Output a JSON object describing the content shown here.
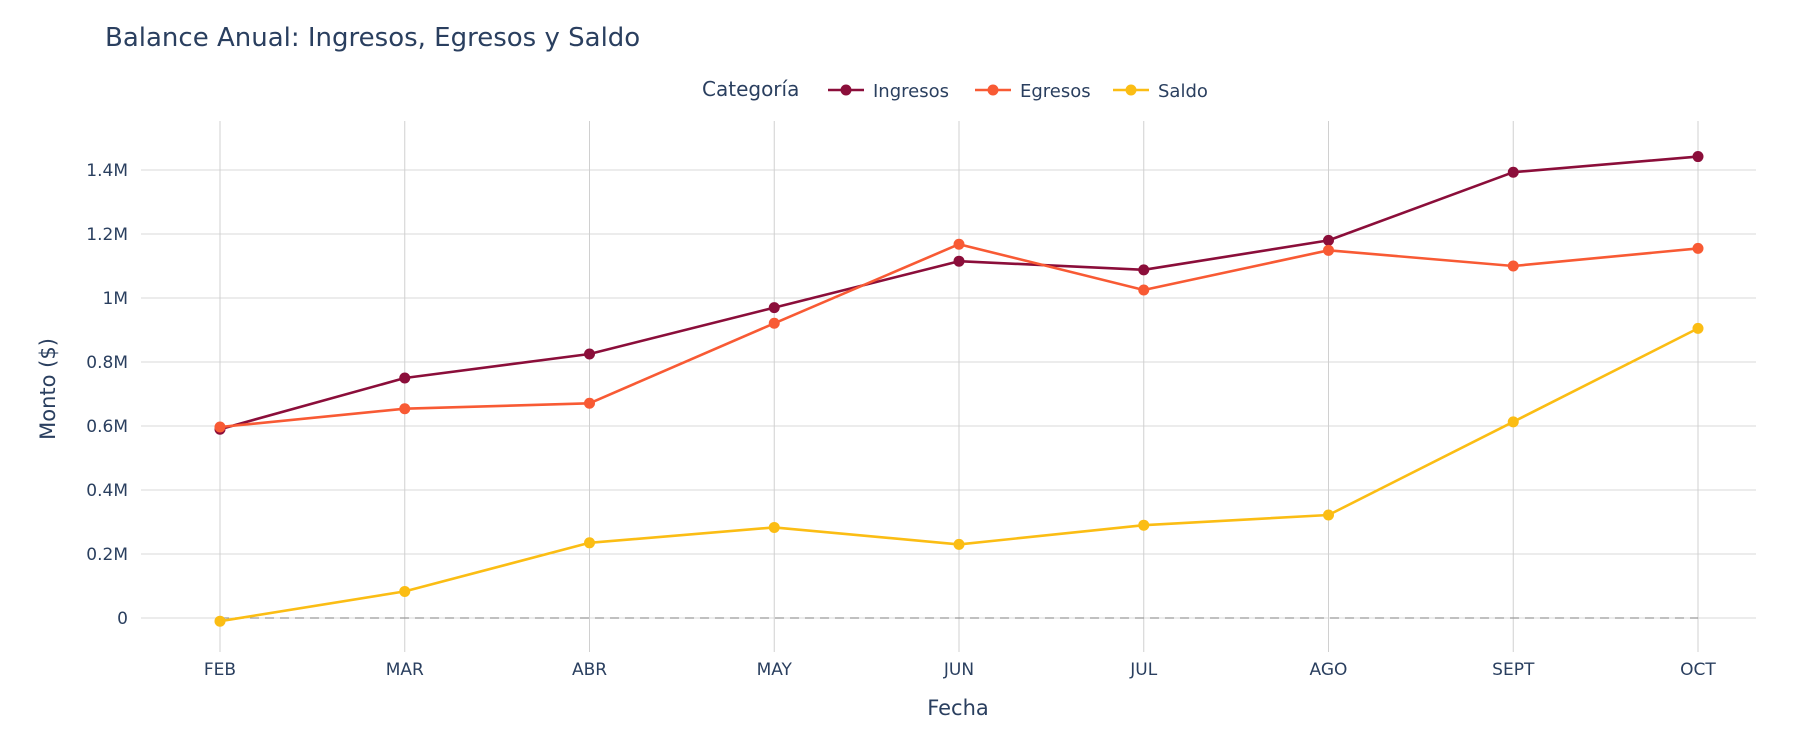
{
  "chart_data": {
    "type": "line",
    "title": "Balance Anual: Ingresos, Egresos y Saldo",
    "xlabel": "Fecha",
    "ylabel": "Monto ($)",
    "categories": [
      "FEB",
      "MAR",
      "ABR",
      "MAY",
      "JUN",
      "JUL",
      "AGO",
      "SEPT",
      "OCT"
    ],
    "ylim": [
      -0.11,
      1.56
    ],
    "yticks": [
      0,
      0.2,
      0.4,
      0.6,
      0.8,
      1.0,
      1.2,
      1.4
    ],
    "ytick_labels": [
      "0",
      "0.2M",
      "0.4M",
      "0.6M",
      "0.8M",
      "1M",
      "1.2M",
      "1.4M"
    ],
    "y_unit": "millions",
    "grid": true,
    "zero_line": "dashed",
    "legend": {
      "title": "Categoría",
      "placement": "top-center",
      "orientation": "horizontal"
    },
    "series": [
      {
        "name": "Ingresos",
        "color": "#8b0e3a",
        "values": [
          0.59,
          0.75,
          0.825,
          0.97,
          1.115,
          1.088,
          1.18,
          1.393,
          1.442
        ]
      },
      {
        "name": "Egresos",
        "color": "#f85a34",
        "values": [
          0.597,
          0.654,
          0.671,
          0.921,
          1.168,
          1.025,
          1.149,
          1.1,
          1.155
        ]
      },
      {
        "name": "Saldo",
        "color": "#fbbd14",
        "values": [
          -0.01,
          0.083,
          0.235,
          0.283,
          0.23,
          0.29,
          0.322,
          0.613,
          0.905
        ]
      }
    ]
  }
}
